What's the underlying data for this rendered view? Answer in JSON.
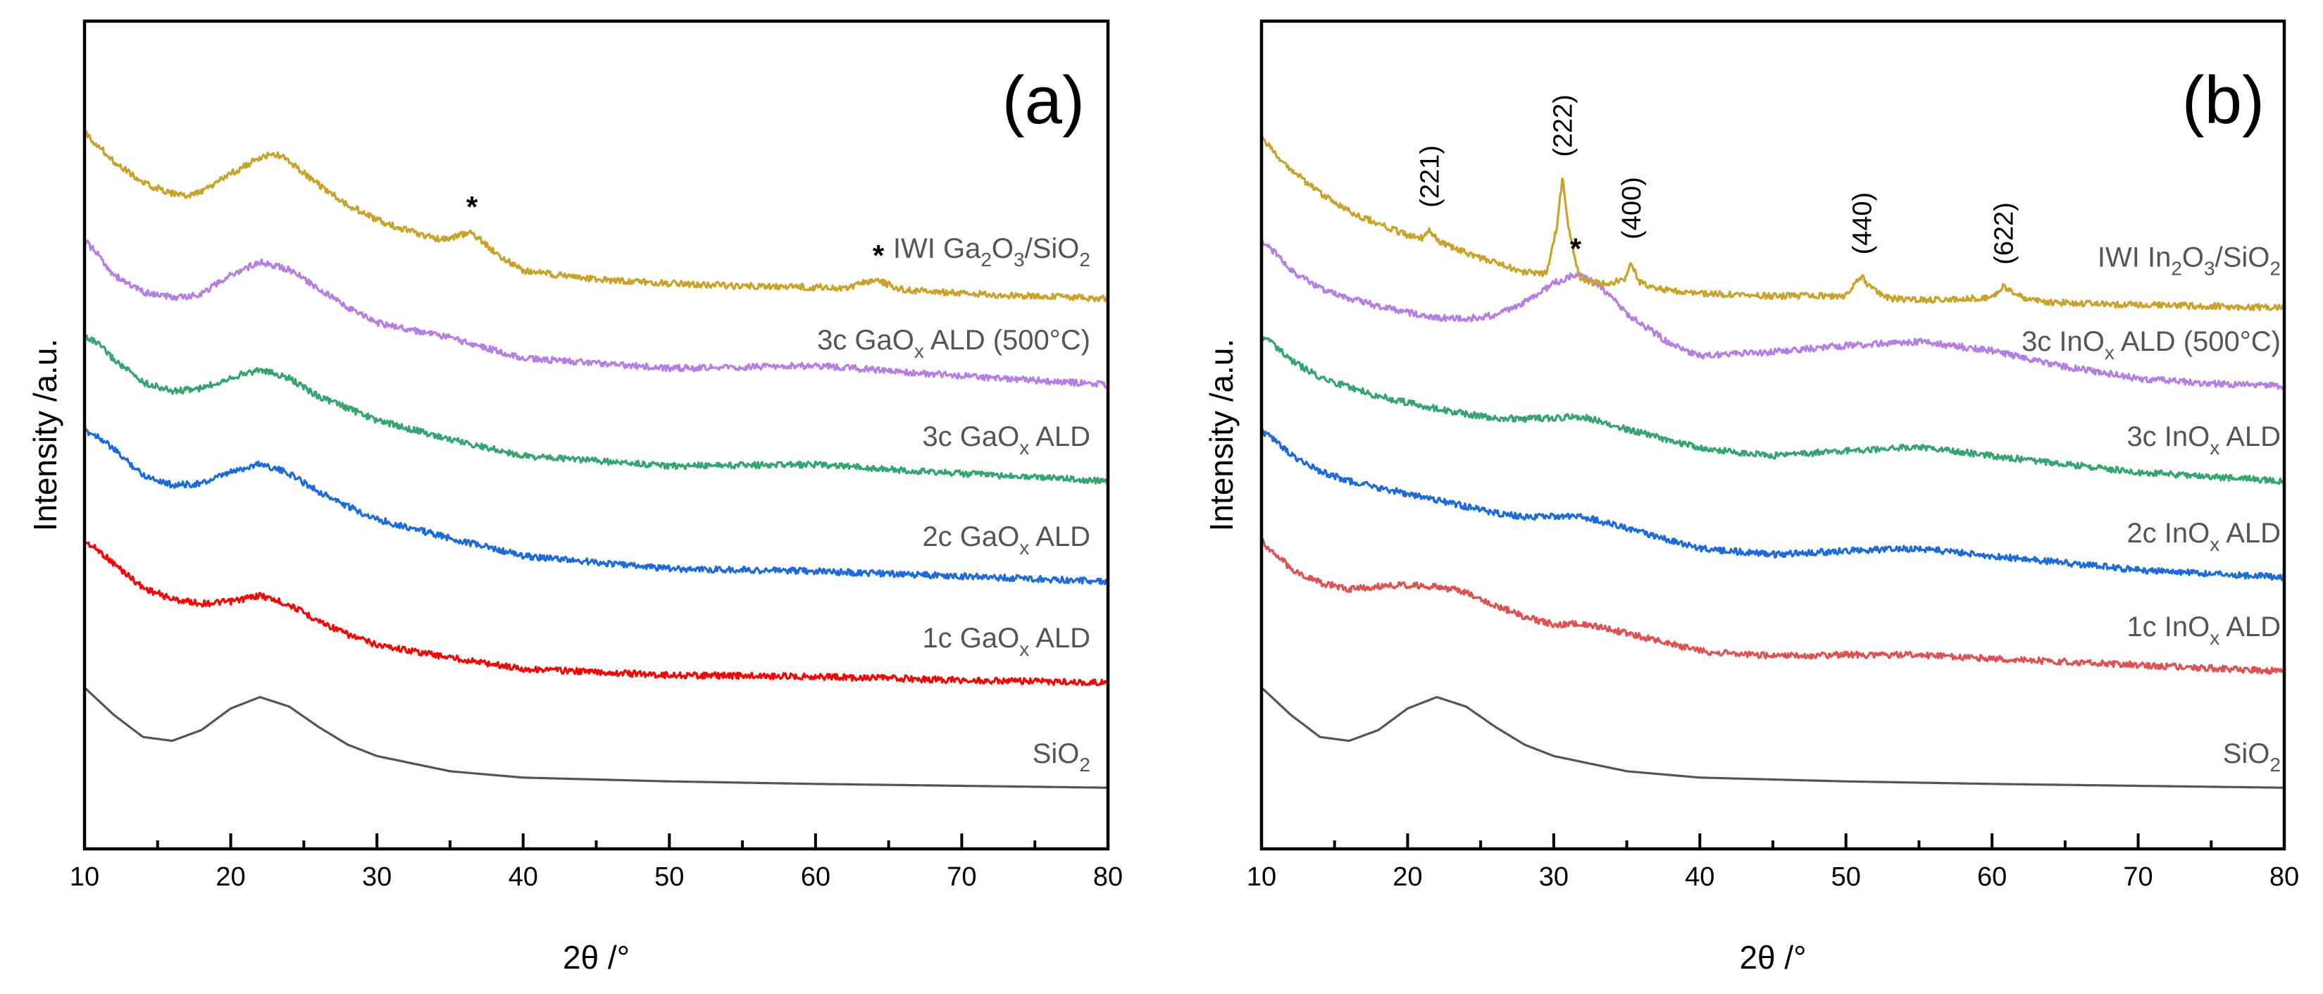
{
  "chart_data": [
    {
      "type": "line",
      "panel_label": "(a)",
      "xlabel": "2θ /°",
      "ylabel": "Intensity /a.u.",
      "xlim": [
        10,
        80
      ],
      "xticks": [
        10,
        20,
        30,
        40,
        50,
        60,
        70,
        80
      ],
      "yticks": "none",
      "series": [
        {
          "name": "SiO",
          "sub": "2",
          "suffix": "",
          "color": "#555555",
          "x": [
            10,
            12,
            14,
            16,
            18,
            20,
            22,
            24,
            26,
            28,
            30,
            35,
            40,
            50,
            60,
            70,
            80
          ],
          "y": [
            1.6,
            1.17,
            0.82,
            0.76,
            0.93,
            1.27,
            1.45,
            1.3,
            0.98,
            0.7,
            0.52,
            0.28,
            0.18,
            0.12,
            0.08,
            0.05,
            0.02
          ]
        },
        {
          "name": "1c GaO",
          "sub": "x",
          "suffix": " ALD",
          "color": "#ff0000",
          "x": [
            10,
            11,
            12,
            14,
            16,
            18,
            20,
            22,
            24,
            26,
            28,
            30,
            35,
            40,
            50,
            60,
            70,
            80
          ],
          "y": [
            2.35,
            2.2,
            2.0,
            1.62,
            1.44,
            1.37,
            1.4,
            1.5,
            1.35,
            1.1,
            0.88,
            0.72,
            0.52,
            0.34,
            0.24,
            0.22,
            0.16,
            0.12
          ]
        },
        {
          "name": "2c GaO",
          "sub": "x",
          "suffix": " ALD",
          "color": "#1a6be0",
          "x": [
            10,
            11,
            12,
            14,
            16,
            18,
            20,
            22,
            24,
            26,
            28,
            30,
            35,
            40,
            50,
            60,
            70,
            80
          ],
          "y": [
            2.6,
            2.5,
            2.3,
            1.9,
            1.74,
            1.76,
            1.94,
            2.08,
            1.92,
            1.64,
            1.4,
            1.2,
            0.9,
            0.62,
            0.42,
            0.38,
            0.3,
            0.22
          ]
        },
        {
          "name": "3c GaO",
          "sub": "x",
          "suffix": " ALD",
          "color": "#33a56e",
          "x": [
            10,
            11,
            12,
            14,
            16,
            18,
            20,
            22,
            24,
            26,
            28,
            30,
            35,
            40,
            50,
            60,
            70,
            80
          ],
          "y": [
            2.6,
            2.45,
            2.22,
            1.86,
            1.72,
            1.76,
            1.94,
            2.06,
            1.92,
            1.64,
            1.45,
            1.26,
            0.96,
            0.7,
            0.54,
            0.56,
            0.42,
            0.3
          ]
        },
        {
          "name": "3c GaO",
          "sub": "x",
          "suffix": " ALD (500°C)",
          "color": "#b57ee6",
          "x": [
            10,
            11,
            12,
            14,
            16,
            17,
            18,
            20,
            22,
            24,
            26,
            28,
            30,
            35,
            40,
            50,
            60,
            70,
            80
          ],
          "y": [
            2.6,
            2.35,
            2.05,
            1.78,
            1.7,
            1.7,
            1.76,
            2.05,
            2.26,
            2.14,
            1.84,
            1.54,
            1.3,
            1.06,
            0.74,
            0.58,
            0.62,
            0.46,
            0.32
          ]
        },
        {
          "name": "IWI Ga",
          "sub": "2",
          "suffix": "O",
          "sub2": "3",
          "suffix2": "/SiO",
          "sub3": "2",
          "suffix3": "",
          "color": "#c9a227",
          "x": [
            10,
            12,
            14,
            16,
            17,
            18,
            20,
            22,
            23,
            24,
            26,
            28,
            30,
            32,
            34,
            35,
            36,
            36.5,
            38,
            40,
            45,
            50,
            55,
            60,
            62,
            64,
            66,
            70,
            75,
            80
          ],
          "y": [
            2.8,
            2.35,
            2.0,
            1.84,
            1.8,
            1.86,
            2.15,
            2.4,
            2.46,
            2.35,
            1.98,
            1.66,
            1.42,
            1.26,
            1.12,
            1.12,
            1.2,
            1.22,
            0.92,
            0.62,
            0.48,
            0.42,
            0.38,
            0.36,
            0.34,
            0.48,
            0.32,
            0.26,
            0.22,
            0.18
          ]
        }
      ],
      "annotations": [
        {
          "text": "*",
          "x": 36.5
        },
        {
          "text": "*",
          "x": 64.3
        }
      ]
    },
    {
      "type": "line",
      "panel_label": "(b)",
      "xlabel": "2θ /°",
      "ylabel": "Intensity /a.u.",
      "xlim": [
        10,
        80
      ],
      "xticks": [
        10,
        20,
        30,
        40,
        50,
        60,
        70,
        80
      ],
      "yticks": "none",
      "series": [
        {
          "name": "SiO",
          "sub": "2",
          "suffix": "",
          "color": "#555555",
          "x": [
            10,
            12,
            14,
            16,
            18,
            20,
            22,
            24,
            26,
            28,
            30,
            35,
            40,
            50,
            60,
            70,
            80
          ],
          "y": [
            1.6,
            1.17,
            0.82,
            0.76,
            0.93,
            1.27,
            1.45,
            1.3,
            0.98,
            0.7,
            0.52,
            0.28,
            0.18,
            0.12,
            0.08,
            0.05,
            0.02
          ]
        },
        {
          "name": "1c InO",
          "sub": "x",
          "suffix": " ALD",
          "color": "#e05050",
          "x": [
            10,
            11,
            12,
            14,
            16,
            18,
            20,
            22,
            24,
            26,
            28,
            30,
            32,
            35,
            40,
            45,
            50,
            55,
            60,
            70,
            80
          ],
          "y": [
            2.35,
            2.15,
            1.92,
            1.7,
            1.6,
            1.64,
            1.66,
            1.64,
            1.55,
            1.34,
            1.16,
            1.04,
            1.06,
            0.9,
            0.62,
            0.54,
            0.56,
            0.56,
            0.5,
            0.4,
            0.3
          ]
        },
        {
          "name": "2c InO",
          "sub": "x",
          "suffix": " ALD",
          "color": "#1a6be0",
          "x": [
            10,
            11,
            12,
            14,
            16,
            18,
            20,
            22,
            24,
            26,
            28,
            30,
            32,
            35,
            40,
            45,
            50,
            55,
            60,
            70,
            80
          ],
          "y": [
            2.6,
            2.42,
            2.22,
            1.96,
            1.8,
            1.7,
            1.6,
            1.5,
            1.4,
            1.3,
            1.24,
            1.24,
            1.24,
            1.06,
            0.74,
            0.64,
            0.7,
            0.74,
            0.62,
            0.4,
            0.28
          ]
        },
        {
          "name": "3c InO",
          "sub": "x",
          "suffix": " ALD",
          "color": "#33a56e",
          "x": [
            10,
            11,
            12,
            14,
            16,
            18,
            20,
            22,
            24,
            26,
            28,
            30,
            32,
            35,
            40,
            45,
            50,
            55,
            60,
            70,
            80
          ],
          "y": [
            2.6,
            2.42,
            2.2,
            1.94,
            1.78,
            1.64,
            1.54,
            1.44,
            1.36,
            1.3,
            1.28,
            1.3,
            1.32,
            1.12,
            0.82,
            0.7,
            0.78,
            0.84,
            0.7,
            0.44,
            0.3
          ]
        },
        {
          "name": "3c InO",
          "sub": "x",
          "suffix": " ALD (500°C)",
          "color": "#b57ee6",
          "x": [
            10,
            11,
            12,
            14,
            16,
            18,
            20,
            22,
            24,
            26,
            28,
            30,
            31.5,
            33,
            35,
            38,
            40,
            45,
            50,
            55,
            60,
            65,
            70,
            75,
            80
          ],
          "y": [
            2.6,
            2.38,
            2.12,
            1.84,
            1.68,
            1.56,
            1.46,
            1.38,
            1.36,
            1.42,
            1.62,
            1.92,
            2.06,
            1.92,
            1.44,
            0.96,
            0.78,
            0.84,
            0.94,
            1.0,
            0.86,
            0.6,
            0.42,
            0.34,
            0.3
          ]
        },
        {
          "name": "IWI In",
          "sub": "2",
          "suffix": "O",
          "sub2": "3",
          "suffix2": "/SiO",
          "sub3": "2",
          "suffix3": "",
          "color": "#c9a227",
          "x": [
            10,
            12,
            14,
            16,
            18,
            20,
            21,
            21.5,
            22,
            24,
            26,
            28,
            29.5,
            30.2,
            30.6,
            31,
            31.8,
            33,
            34.8,
            35.3,
            35.8,
            37,
            40,
            45,
            50,
            50.6,
            51.1,
            51.6,
            53,
            56,
            60,
            60.8,
            61.5,
            63,
            66,
            70,
            75,
            80
          ],
          "y": [
            2.7,
            2.22,
            1.84,
            1.56,
            1.36,
            1.18,
            1.14,
            1.28,
            1.1,
            0.9,
            0.74,
            0.6,
            0.58,
            1.3,
            2.08,
            1.3,
            0.48,
            0.42,
            0.46,
            0.78,
            0.44,
            0.34,
            0.26,
            0.22,
            0.22,
            0.4,
            0.54,
            0.36,
            0.18,
            0.16,
            0.2,
            0.38,
            0.24,
            0.14,
            0.1,
            0.08,
            0.06,
            0.04
          ]
        }
      ],
      "annotations": [
        {
          "text": "(221)",
          "x": 21.5
        },
        {
          "text": "(222)",
          "x": 30.6
        },
        {
          "text": "(400)",
          "x": 35.3
        },
        {
          "text": "(440)",
          "x": 51.1
        },
        {
          "text": "(622)",
          "x": 60.8
        },
        {
          "text": "*",
          "x": 31.5
        }
      ]
    }
  ]
}
